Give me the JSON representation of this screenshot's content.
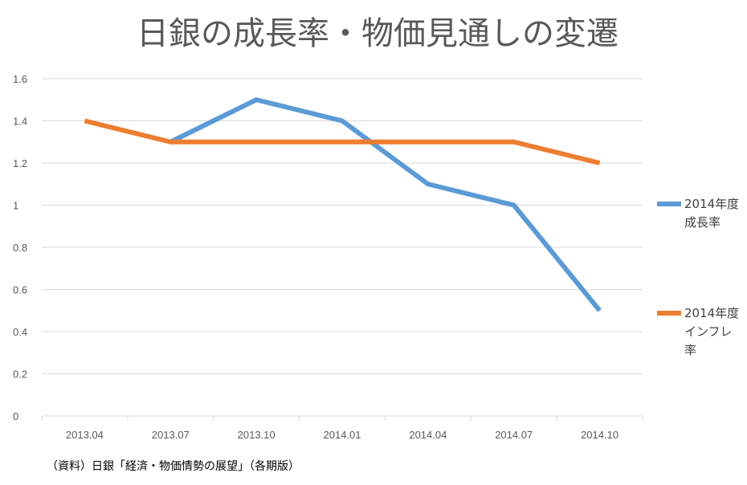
{
  "source_note": "（資料）日銀「経済・物価情勢の展望」（各期版）",
  "colors": {
    "growth": "#5b9bd5",
    "inflation": "#ed7d31",
    "grid": "#d9d9d9",
    "text": "#595959"
  },
  "chart_data": {
    "type": "line",
    "title": "日銀の成長率・物価見通しの変遷",
    "xlabel": "",
    "ylabel": "",
    "categories": [
      "2013.04",
      "2013.07",
      "2013.10",
      "2014.01",
      "2014.04",
      "2014.07",
      "2014.10"
    ],
    "ylim": [
      0,
      1.6
    ],
    "yticks": [
      "0",
      "0.2",
      "0.4",
      "0.6",
      "0.8",
      "1",
      "1.2",
      "1.4",
      "1.6"
    ],
    "grid": true,
    "legend_position": "right",
    "series": [
      {
        "name_lines": [
          "2014年度",
          "成長率"
        ],
        "color": "#5b9bd5",
        "values": [
          null,
          1.3,
          1.5,
          1.4,
          1.1,
          1.0,
          0.5
        ]
      },
      {
        "name_lines": [
          "2014年度",
          "インフレ",
          "率"
        ],
        "color": "#ed7d31",
        "values": [
          1.4,
          1.3,
          1.3,
          1.3,
          1.3,
          1.3,
          1.2
        ]
      }
    ]
  }
}
